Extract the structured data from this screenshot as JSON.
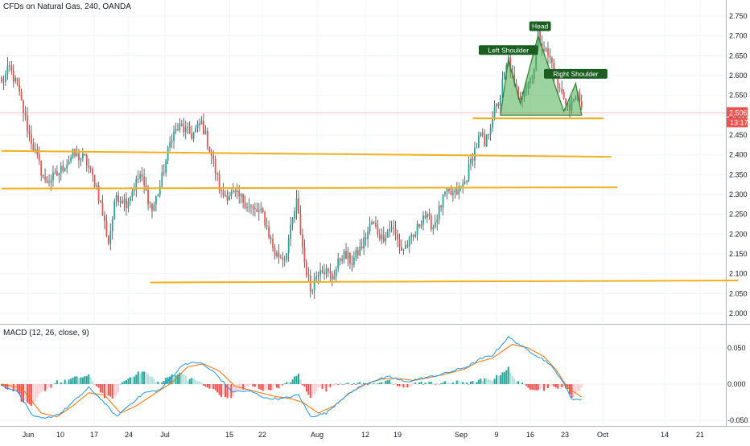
{
  "header": {
    "title": "CFDs on Natural Gas, 240, OANDA"
  },
  "macd_panel": {
    "title": "MACD (12, 26, close, 9)"
  },
  "colors": {
    "up": "#26a69a",
    "down": "#ef5350",
    "wick": "#444444",
    "level_line": "#f2b01e",
    "pattern_fill": "#4caf50",
    "pattern_stroke": "#2e7d32",
    "price_line": "#ef5350",
    "macd_line": "#2196f3",
    "signal_line": "#ff6d00",
    "label_bg": "#1b5e20",
    "grid": "#f0f3fa",
    "axis_text": "#131722"
  },
  "chart_data": [
    {
      "type": "candlestick",
      "title": "CFDs on Natural Gas, 240, OANDA",
      "ylim": [
        2.0,
        2.75
      ],
      "y_ticks": [
        "2.750",
        "2.700",
        "2.650",
        "2.600",
        "2.550",
        "2.500",
        "2.450",
        "2.400",
        "2.350",
        "2.300",
        "2.250",
        "2.200",
        "2.150",
        "2.100",
        "2.050",
        "2.000"
      ],
      "x_ticks": [
        "Jun",
        "10",
        "17",
        "24",
        "Jul",
        "15",
        "22",
        "Aug",
        "12",
        "19",
        "Sep",
        "9",
        "16",
        "23",
        "Oct",
        "14",
        "21"
      ],
      "current_price": {
        "value": 2.506,
        "label": "2.506",
        "countdown": "13:17"
      },
      "anchors": [
        {
          "t": 0,
          "p": 2.58
        },
        {
          "t": 4,
          "p": 2.62
        },
        {
          "t": 8,
          "p": 2.57
        },
        {
          "t": 14,
          "p": 2.45
        },
        {
          "t": 22,
          "p": 2.33
        },
        {
          "t": 28,
          "p": 2.35
        },
        {
          "t": 36,
          "p": 2.4
        },
        {
          "t": 42,
          "p": 2.39
        },
        {
          "t": 48,
          "p": 2.32
        },
        {
          "t": 54,
          "p": 2.18
        },
        {
          "t": 58,
          "p": 2.3
        },
        {
          "t": 63,
          "p": 2.28
        },
        {
          "t": 70,
          "p": 2.35
        },
        {
          "t": 76,
          "p": 2.26
        },
        {
          "t": 80,
          "p": 2.32
        },
        {
          "t": 86,
          "p": 2.45
        },
        {
          "t": 90,
          "p": 2.47
        },
        {
          "t": 96,
          "p": 2.45
        },
        {
          "t": 101,
          "p": 2.48
        },
        {
          "t": 106,
          "p": 2.4
        },
        {
          "t": 111,
          "p": 2.3
        },
        {
          "t": 117,
          "p": 2.3
        },
        {
          "t": 121,
          "p": 2.29
        },
        {
          "t": 127,
          "p": 2.26
        },
        {
          "t": 132,
          "p": 2.25
        },
        {
          "t": 138,
          "p": 2.15
        },
        {
          "t": 143,
          "p": 2.14
        },
        {
          "t": 149,
          "p": 2.28
        },
        {
          "t": 153,
          "p": 2.13
        },
        {
          "t": 156,
          "p": 2.06
        },
        {
          "t": 161,
          "p": 2.12
        },
        {
          "t": 167,
          "p": 2.09
        },
        {
          "t": 172,
          "p": 2.15
        },
        {
          "t": 177,
          "p": 2.13
        },
        {
          "t": 182,
          "p": 2.17
        },
        {
          "t": 187,
          "p": 2.23
        },
        {
          "t": 192,
          "p": 2.19
        },
        {
          "t": 197,
          "p": 2.22
        },
        {
          "t": 202,
          "p": 2.16
        },
        {
          "t": 208,
          "p": 2.19
        },
        {
          "t": 213,
          "p": 2.25
        },
        {
          "t": 218,
          "p": 2.22
        },
        {
          "t": 224,
          "p": 2.3
        },
        {
          "t": 229,
          "p": 2.3
        },
        {
          "t": 234,
          "p": 2.33
        },
        {
          "t": 238,
          "p": 2.4
        },
        {
          "t": 242,
          "p": 2.45
        },
        {
          "t": 244,
          "p": 2.42
        },
        {
          "t": 248,
          "p": 2.5
        },
        {
          "t": 251,
          "p": 2.53
        },
        {
          "t": 253,
          "p": 2.58
        },
        {
          "t": 256,
          "p": 2.64
        },
        {
          "t": 259,
          "p": 2.57
        },
        {
          "t": 262,
          "p": 2.55
        },
        {
          "t": 266,
          "p": 2.58
        },
        {
          "t": 269,
          "p": 2.62
        },
        {
          "t": 271,
          "p": 2.7
        },
        {
          "t": 275,
          "p": 2.66
        },
        {
          "t": 278,
          "p": 2.63
        },
        {
          "t": 281,
          "p": 2.57
        },
        {
          "t": 285,
          "p": 2.54
        },
        {
          "t": 287,
          "p": 2.51
        },
        {
          "t": 290,
          "p": 2.56
        },
        {
          "t": 293,
          "p": 2.51
        }
      ],
      "levels": [
        {
          "name": "resistance-1",
          "from": {
            "t": 0,
            "p": 2.41
          },
          "to": {
            "t": 308,
            "p": 2.395
          }
        },
        {
          "name": "support-1",
          "from": {
            "t": 0,
            "p": 2.315
          },
          "to": {
            "t": 311,
            "p": 2.318
          }
        },
        {
          "name": "support-2",
          "from": {
            "t": 75,
            "p": 2.078
          },
          "to": {
            "t": 372,
            "p": 2.083
          }
        },
        {
          "name": "neckline",
          "from": {
            "t": 238,
            "p": 2.492
          },
          "to": {
            "t": 304,
            "p": 2.492
          }
        }
      ],
      "pattern": {
        "name": "head-and-shoulders",
        "points": [
          {
            "t": 252,
            "p": 2.5
          },
          {
            "t": 256,
            "p": 2.64
          },
          {
            "t": 262,
            "p": 2.53
          },
          {
            "t": 271,
            "p": 2.7
          },
          {
            "t": 284,
            "p": 2.51
          },
          {
            "t": 290,
            "p": 2.58
          },
          {
            "t": 293,
            "p": 2.5
          }
        ],
        "labels": [
          {
            "text": "Left Shoulder",
            "t": 256,
            "p": 2.64
          },
          {
            "text": "Head",
            "t": 272,
            "p": 2.7
          },
          {
            "text": "Right Shoulder",
            "t": 290,
            "p": 2.58
          }
        ]
      }
    },
    {
      "type": "macd",
      "title": "MACD (12, 26, close, 9)",
      "ylim": [
        -0.055,
        0.07
      ],
      "y_ticks": [
        "0.050",
        "0.000",
        "-0.050"
      ],
      "macd_anchors": [
        {
          "t": 0,
          "v": -0.002
        },
        {
          "t": 8,
          "v": -0.01
        },
        {
          "t": 16,
          "v": -0.045
        },
        {
          "t": 22,
          "v": -0.048
        },
        {
          "t": 30,
          "v": -0.04
        },
        {
          "t": 38,
          "v": -0.02
        },
        {
          "t": 44,
          "v": -0.005
        },
        {
          "t": 50,
          "v": -0.02
        },
        {
          "t": 58,
          "v": -0.045
        },
        {
          "t": 64,
          "v": -0.03
        },
        {
          "t": 72,
          "v": -0.012
        },
        {
          "t": 80,
          "v": -0.008
        },
        {
          "t": 86,
          "v": 0.01
        },
        {
          "t": 92,
          "v": 0.028
        },
        {
          "t": 100,
          "v": 0.03
        },
        {
          "t": 108,
          "v": 0.015
        },
        {
          "t": 116,
          "v": -0.01
        },
        {
          "t": 126,
          "v": -0.01
        },
        {
          "t": 134,
          "v": -0.02
        },
        {
          "t": 142,
          "v": -0.02
        },
        {
          "t": 150,
          "v": -0.015
        },
        {
          "t": 156,
          "v": -0.045
        },
        {
          "t": 164,
          "v": -0.04
        },
        {
          "t": 172,
          "v": -0.02
        },
        {
          "t": 180,
          "v": -0.005
        },
        {
          "t": 188,
          "v": 0.005
        },
        {
          "t": 196,
          "v": 0.01
        },
        {
          "t": 204,
          "v": 0.003
        },
        {
          "t": 212,
          "v": 0.008
        },
        {
          "t": 220,
          "v": 0.012
        },
        {
          "t": 228,
          "v": 0.018
        },
        {
          "t": 236,
          "v": 0.025
        },
        {
          "t": 242,
          "v": 0.035
        },
        {
          "t": 248,
          "v": 0.04
        },
        {
          "t": 256,
          "v": 0.065
        },
        {
          "t": 264,
          "v": 0.05
        },
        {
          "t": 270,
          "v": 0.04
        },
        {
          "t": 276,
          "v": 0.03
        },
        {
          "t": 282,
          "v": 0.01
        },
        {
          "t": 288,
          "v": -0.02
        },
        {
          "t": 293,
          "v": -0.022
        }
      ],
      "signal_anchors": [
        {
          "t": 0,
          "v": 0.0
        },
        {
          "t": 10,
          "v": -0.005
        },
        {
          "t": 20,
          "v": -0.04
        },
        {
          "t": 28,
          "v": -0.045
        },
        {
          "t": 36,
          "v": -0.03
        },
        {
          "t": 44,
          "v": -0.012
        },
        {
          "t": 52,
          "v": -0.015
        },
        {
          "t": 60,
          "v": -0.04
        },
        {
          "t": 68,
          "v": -0.03
        },
        {
          "t": 78,
          "v": -0.012
        },
        {
          "t": 86,
          "v": 0.002
        },
        {
          "t": 94,
          "v": 0.024
        },
        {
          "t": 102,
          "v": 0.028
        },
        {
          "t": 110,
          "v": 0.018
        },
        {
          "t": 118,
          "v": -0.003
        },
        {
          "t": 128,
          "v": -0.01
        },
        {
          "t": 138,
          "v": -0.017
        },
        {
          "t": 146,
          "v": -0.02
        },
        {
          "t": 152,
          "v": -0.025
        },
        {
          "t": 160,
          "v": -0.04
        },
        {
          "t": 168,
          "v": -0.03
        },
        {
          "t": 176,
          "v": -0.012
        },
        {
          "t": 184,
          "v": 0.0
        },
        {
          "t": 192,
          "v": 0.007
        },
        {
          "t": 200,
          "v": 0.008
        },
        {
          "t": 208,
          "v": 0.005
        },
        {
          "t": 216,
          "v": 0.009
        },
        {
          "t": 226,
          "v": 0.015
        },
        {
          "t": 234,
          "v": 0.021
        },
        {
          "t": 240,
          "v": 0.03
        },
        {
          "t": 248,
          "v": 0.036
        },
        {
          "t": 258,
          "v": 0.055
        },
        {
          "t": 266,
          "v": 0.05
        },
        {
          "t": 274,
          "v": 0.038
        },
        {
          "t": 280,
          "v": 0.02
        },
        {
          "t": 286,
          "v": -0.005
        },
        {
          "t": 293,
          "v": -0.018
        }
      ]
    }
  ]
}
